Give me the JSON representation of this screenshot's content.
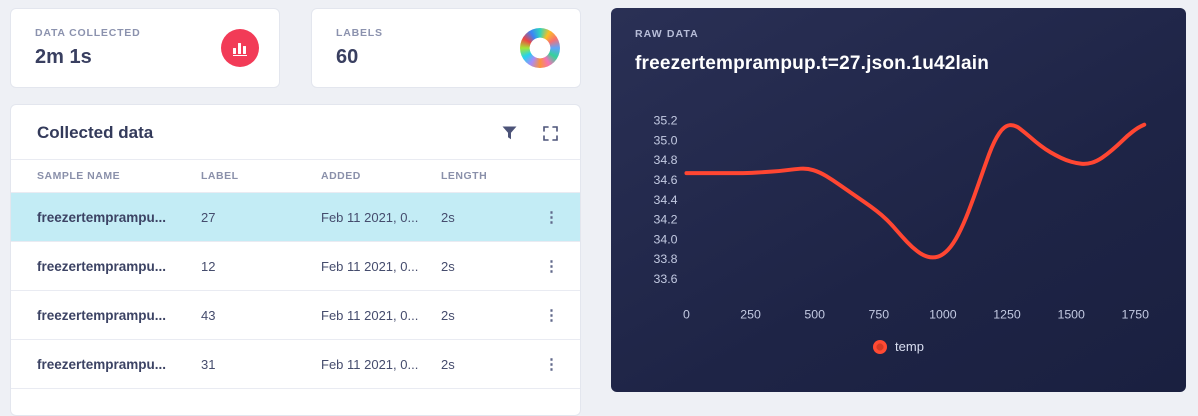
{
  "stats": {
    "data_collected": {
      "label": "DATA COLLECTED",
      "value": "2m 1s"
    },
    "labels": {
      "label": "LABELS",
      "value": "60"
    }
  },
  "collected": {
    "title": "Collected data",
    "columns": [
      "SAMPLE NAME",
      "LABEL",
      "ADDED",
      "LENGTH"
    ],
    "rows": [
      {
        "sample": "freezertemprampu...",
        "label": "27",
        "added": "Feb 11 2021, 0...",
        "length": "2s",
        "selected": true
      },
      {
        "sample": "freezertemprampu...",
        "label": "12",
        "added": "Feb 11 2021, 0...",
        "length": "2s",
        "selected": false
      },
      {
        "sample": "freezertemprampu...",
        "label": "43",
        "added": "Feb 11 2021, 0...",
        "length": "2s",
        "selected": false
      },
      {
        "sample": "freezertemprampu...",
        "label": "31",
        "added": "Feb 11 2021, 0...",
        "length": "2s",
        "selected": false
      }
    ]
  },
  "raw": {
    "kicker": "RAW DATA",
    "title": "freezertemprampup.t=27.json.1u42lain",
    "legend_label": "temp"
  },
  "icons": {
    "kebab": "⋮"
  },
  "colors": {
    "accent_pink": "#f23b57",
    "selected_row": "#c3ecf5",
    "line": "#ff4632",
    "panel_bg": "#1e2446"
  },
  "chart_data": {
    "type": "line",
    "title": "freezertemprampup.t=27.json.1u42lain",
    "xlabel": "",
    "ylabel": "",
    "xlim": [
      0,
      1800
    ],
    "ylim": [
      33.5,
      35.32
    ],
    "xticks": [
      0,
      250,
      500,
      750,
      1000,
      1250,
      1500,
      1750
    ],
    "yticks": [
      35.2,
      35.0,
      34.8,
      34.6,
      34.4,
      34.2,
      34.0,
      33.8,
      33.6
    ],
    "grid": false,
    "legend_position": "bottom",
    "series": [
      {
        "name": "temp",
        "color": "#ff4632",
        "points": [
          [
            0,
            34.67
          ],
          [
            80,
            34.67
          ],
          [
            160,
            34.67
          ],
          [
            240,
            34.67
          ],
          [
            300,
            34.68
          ],
          [
            360,
            34.69
          ],
          [
            420,
            34.71
          ],
          [
            470,
            34.72
          ],
          [
            520,
            34.68
          ],
          [
            570,
            34.6
          ],
          [
            620,
            34.51
          ],
          [
            670,
            34.42
          ],
          [
            720,
            34.33
          ],
          [
            760,
            34.25
          ],
          [
            800,
            34.15
          ],
          [
            840,
            34.03
          ],
          [
            880,
            33.92
          ],
          [
            920,
            33.84
          ],
          [
            960,
            33.81
          ],
          [
            1000,
            33.84
          ],
          [
            1040,
            33.95
          ],
          [
            1080,
            34.15
          ],
          [
            1120,
            34.42
          ],
          [
            1160,
            34.72
          ],
          [
            1200,
            35.0
          ],
          [
            1240,
            35.15
          ],
          [
            1280,
            35.16
          ],
          [
            1320,
            35.08
          ],
          [
            1360,
            34.99
          ],
          [
            1400,
            34.91
          ],
          [
            1440,
            34.85
          ],
          [
            1480,
            34.8
          ],
          [
            1520,
            34.77
          ],
          [
            1560,
            34.76
          ],
          [
            1600,
            34.79
          ],
          [
            1640,
            34.86
          ],
          [
            1680,
            34.95
          ],
          [
            1720,
            35.05
          ],
          [
            1760,
            35.13
          ],
          [
            1785,
            35.16
          ]
        ]
      }
    ]
  }
}
